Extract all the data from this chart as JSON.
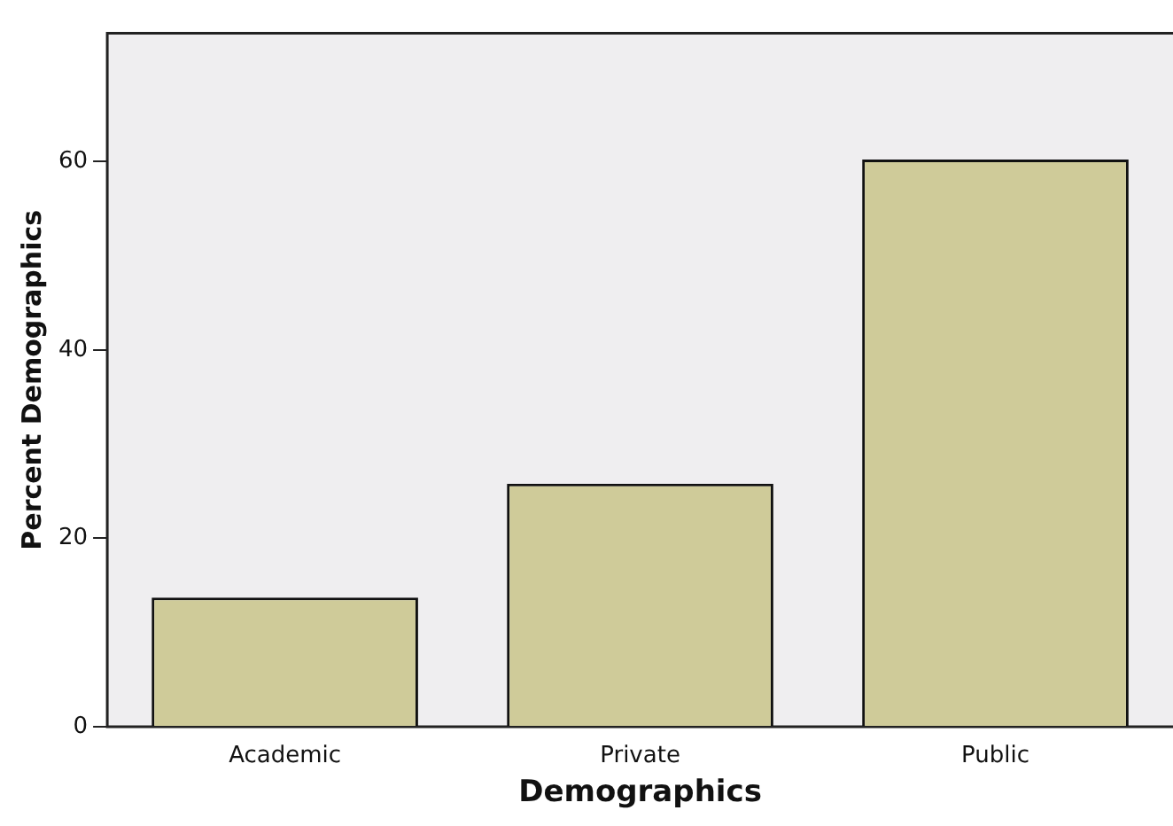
{
  "chart_data": {
    "type": "bar",
    "xlabel": "Demographics",
    "ylabel": "Percent Demographics",
    "categories": [
      "Academic",
      "Private",
      "Public"
    ],
    "values": [
      13.7,
      25.8,
      60.2
    ],
    "color": "#cfcb99",
    "ylim": [
      0,
      73.6
    ],
    "yticks": [
      0,
      20,
      40,
      60
    ],
    "grid": false,
    "legend": false
  }
}
